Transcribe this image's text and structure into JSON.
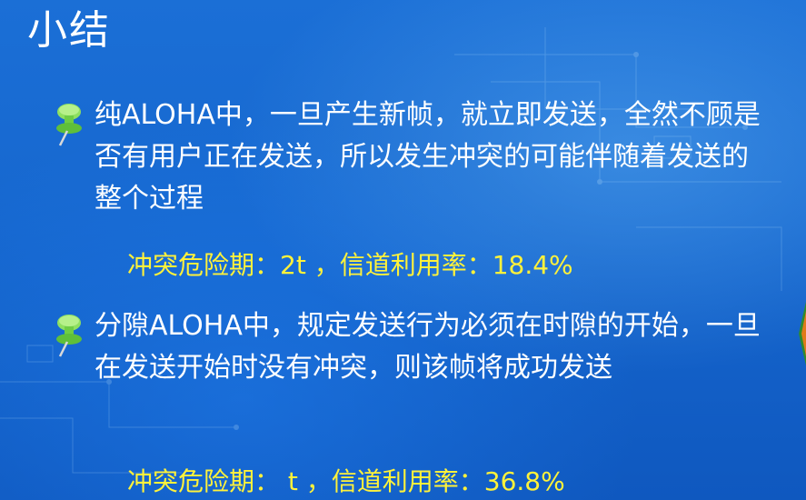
{
  "title": "小结",
  "bullets": [
    {
      "icon": "pushpin-icon",
      "text": "纯ALOHA中，一旦产生新帧，就立即发送，全然不顾是否有用户正在发送，所以发生冲突的可能伴随着发送的整个过程",
      "summary": "冲突危险期：2t ，信道利用率：18.4%"
    },
    {
      "icon": "pushpin-icon",
      "text": "分隙ALOHA中，规定发送行为必须在时隙的开始，一旦在发送开始时没有冲突，则该帧将成功发送",
      "summary": "冲突危险期： t ，信道利用率：36.8%"
    }
  ],
  "colors": {
    "background": "#1667cf",
    "text": "#ffffff",
    "highlight": "#fff23a",
    "pin": "#7ed957"
  }
}
